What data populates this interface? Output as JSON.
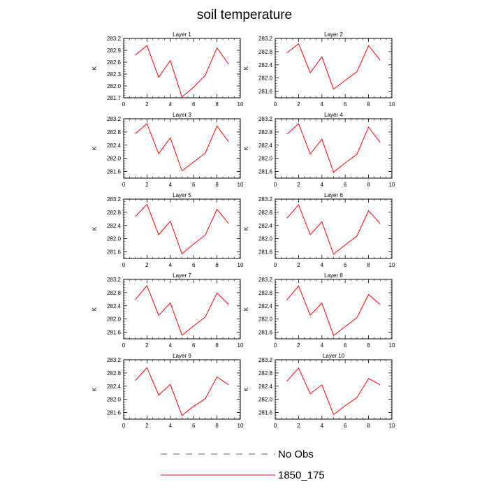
{
  "title": "soil temperature",
  "chart_data": {
    "type": "line",
    "layout": "5x2 grid",
    "xlim": [
      0,
      10
    ],
    "x_ticks": [
      0,
      2,
      4,
      6,
      8,
      10
    ],
    "ylabel": "K",
    "legend": [
      {
        "label": "No Obs",
        "color": "#5555cc",
        "style": "dashed"
      },
      {
        "label": "1850_175",
        "color": "#ff0000",
        "style": "solid"
      }
    ],
    "x": [
      1,
      2,
      3,
      4,
      5,
      6,
      7,
      8,
      9
    ],
    "panels": [
      {
        "title": "Layer 1",
        "ylim": [
          281.7,
          283.2
        ],
        "y_ticks": [
          "281.7",
          "282.0",
          "282.3",
          "282.6",
          "282.9",
          "283.2"
        ],
        "series": [
          {
            "name": "1850_175",
            "values": [
              282.78,
              283.02,
              282.22,
              282.64,
              281.72,
              281.97,
              282.27,
              282.96,
              282.55
            ]
          }
        ]
      },
      {
        "title": "Layer 2",
        "ylim": [
          281.4,
          283.2
        ],
        "y_ticks": [
          "281.6",
          "282.0",
          "282.4",
          "282.8",
          "283.2"
        ],
        "series": [
          {
            "name": "1850_175",
            "values": [
              282.76,
              283.04,
              282.16,
              282.64,
              281.66,
              281.93,
              282.19,
              282.98,
              282.54
            ]
          }
        ]
      },
      {
        "title": "Layer 3",
        "ylim": [
          281.4,
          283.2
        ],
        "y_ticks": [
          "281.6",
          "282.0",
          "282.4",
          "282.8",
          "283.2"
        ],
        "series": [
          {
            "name": "1850_175",
            "values": [
              282.75,
              283.05,
              282.14,
              282.62,
              281.62,
              281.89,
              282.16,
              282.98,
              282.5
            ]
          }
        ]
      },
      {
        "title": "Layer 4",
        "ylim": [
          281.4,
          283.2
        ],
        "y_ticks": [
          "281.6",
          "282.0",
          "282.4",
          "282.8",
          "283.2"
        ],
        "series": [
          {
            "name": "1850_175",
            "values": [
              282.73,
              283.05,
              282.13,
              282.58,
              281.58,
              281.86,
              282.12,
              282.95,
              282.48
            ]
          }
        ]
      },
      {
        "title": "Layer 5",
        "ylim": [
          281.4,
          283.2
        ],
        "y_ticks": [
          "281.6",
          "282.0",
          "282.4",
          "282.8",
          "283.2"
        ],
        "series": [
          {
            "name": "1850_175",
            "values": [
              282.67,
              283.04,
              282.12,
              282.53,
              281.54,
              281.84,
              282.11,
              282.89,
              282.46
            ]
          }
        ]
      },
      {
        "title": "Layer 6",
        "ylim": [
          281.4,
          283.2
        ],
        "y_ticks": [
          "281.6",
          "282.0",
          "282.4",
          "282.8",
          "283.2"
        ],
        "series": [
          {
            "name": "1850_175",
            "values": [
              282.62,
              283.03,
              282.12,
              282.51,
              281.53,
              281.81,
              282.08,
              282.85,
              282.45
            ]
          }
        ]
      },
      {
        "title": "Layer 7",
        "ylim": [
          281.4,
          283.2
        ],
        "y_ticks": [
          "281.6",
          "282.0",
          "282.4",
          "282.8",
          "283.2"
        ],
        "series": [
          {
            "name": "1850_175",
            "values": [
              282.59,
              283.01,
              282.11,
              282.49,
              281.51,
              281.79,
              282.06,
              282.79,
              282.44
            ]
          }
        ]
      },
      {
        "title": "Layer 8",
        "ylim": [
          281.4,
          283.2
        ],
        "y_ticks": [
          "281.6",
          "282.0",
          "282.4",
          "282.8",
          "283.2"
        ],
        "series": [
          {
            "name": "1850_175",
            "values": [
              282.58,
              283.0,
              282.12,
              282.48,
              281.5,
              281.77,
              282.04,
              282.74,
              282.44
            ]
          }
        ]
      },
      {
        "title": "Layer 9",
        "ylim": [
          281.4,
          283.2
        ],
        "y_ticks": [
          "281.6",
          "282.0",
          "282.4",
          "282.8",
          "283.2"
        ],
        "series": [
          {
            "name": "1850_175",
            "values": [
              282.57,
              282.96,
              282.13,
              282.45,
              281.51,
              281.79,
              282.02,
              282.68,
              282.44
            ]
          }
        ]
      },
      {
        "title": "Layer 10",
        "ylim": [
          281.4,
          283.2
        ],
        "y_ticks": [
          "281.6",
          "282.0",
          "282.4",
          "282.8",
          "283.2"
        ],
        "series": [
          {
            "name": "1850_175",
            "values": [
              282.55,
              282.95,
              282.17,
              282.44,
              281.54,
              281.81,
              282.05,
              282.63,
              282.44
            ]
          }
        ]
      }
    ]
  }
}
